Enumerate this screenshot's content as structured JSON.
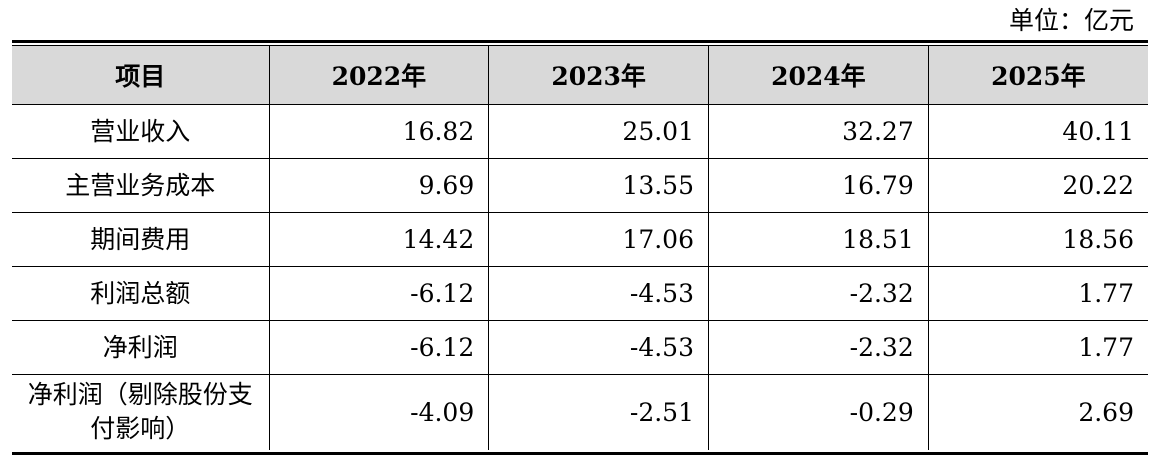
{
  "unit_label": "单位：亿元",
  "table": {
    "headers": [
      "项目",
      "2022年",
      "2023年",
      "2024年",
      "2025年"
    ],
    "rows": [
      {
        "label": "营业收入",
        "values": [
          "16.82",
          "25.01",
          "32.27",
          "40.11"
        ]
      },
      {
        "label": "主营业务成本",
        "values": [
          "9.69",
          "13.55",
          "16.79",
          "20.22"
        ]
      },
      {
        "label": "期间费用",
        "values": [
          "14.42",
          "17.06",
          "18.51",
          "18.56"
        ]
      },
      {
        "label": "利润总额",
        "values": [
          "-6.12",
          "-4.53",
          "-2.32",
          "1.77"
        ]
      },
      {
        "label": "净利润",
        "values": [
          "-6.12",
          "-4.53",
          "-2.32",
          "1.77"
        ]
      },
      {
        "label": "净利润（剔除股份支付影响）",
        "values": [
          "-4.09",
          "-2.51",
          "-0.29",
          "2.69"
        ]
      }
    ]
  }
}
